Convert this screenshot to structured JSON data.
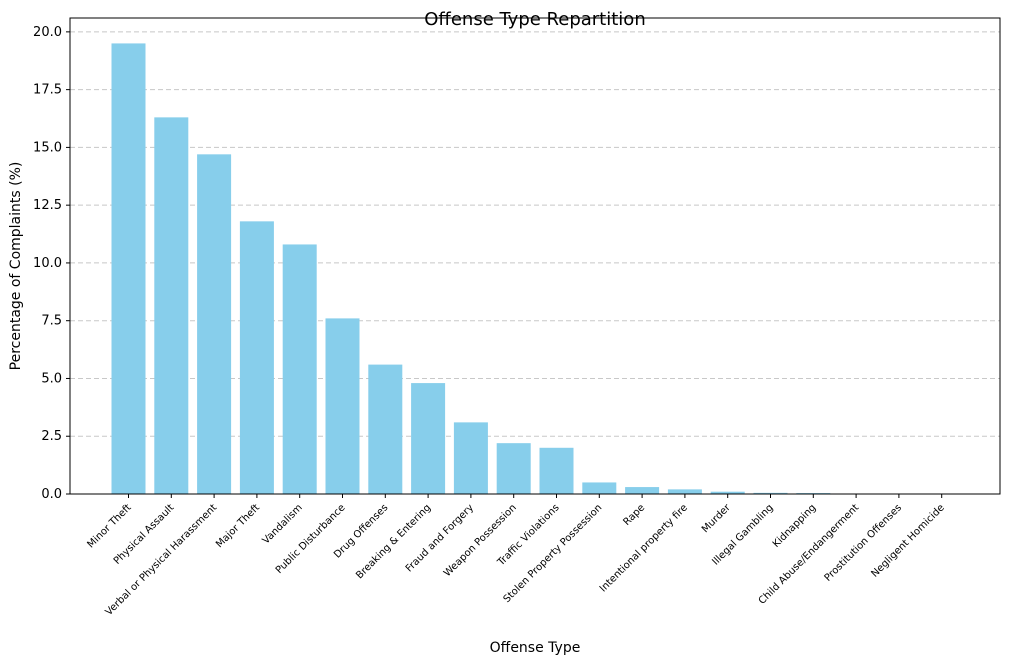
{
  "chart_data": {
    "type": "bar",
    "title": "Offense Type Repartition",
    "xlabel": "Offense Type",
    "ylabel": "Percentage of Complaints (%)",
    "categories": [
      "Minor Theft",
      "Physical Assault",
      "Verbal or Physical Harassment",
      "Major Theft",
      "Vandalism",
      "Public Disturbance",
      "Drug Offenses",
      "Breaking & Entering",
      "Fraud and Forgery",
      "Weapon Possession",
      "Traffic Violations",
      "Stolen Property Possession",
      "Rape",
      "Intentional property fire",
      "Murder",
      "Illegal Gambling",
      "Kidnapping",
      "Child Abuse/Endangerment",
      "Prostitution Offenses",
      "Negligent Homicide"
    ],
    "values": [
      19.5,
      16.3,
      14.7,
      11.8,
      10.8,
      7.6,
      5.6,
      4.8,
      3.1,
      2.2,
      2.0,
      0.5,
      0.3,
      0.2,
      0.1,
      0.05,
      0.04,
      0.02,
      0.01,
      0.005
    ],
    "ylim": [
      0,
      20.6
    ],
    "yticks": [
      "0.0",
      "2.5",
      "5.0",
      "7.5",
      "10.0",
      "12.5",
      "15.0",
      "17.5",
      "20.0"
    ],
    "grid": "y-dashed",
    "bar_color": "#87ceeb",
    "grid_color": "#c8c8c8"
  }
}
